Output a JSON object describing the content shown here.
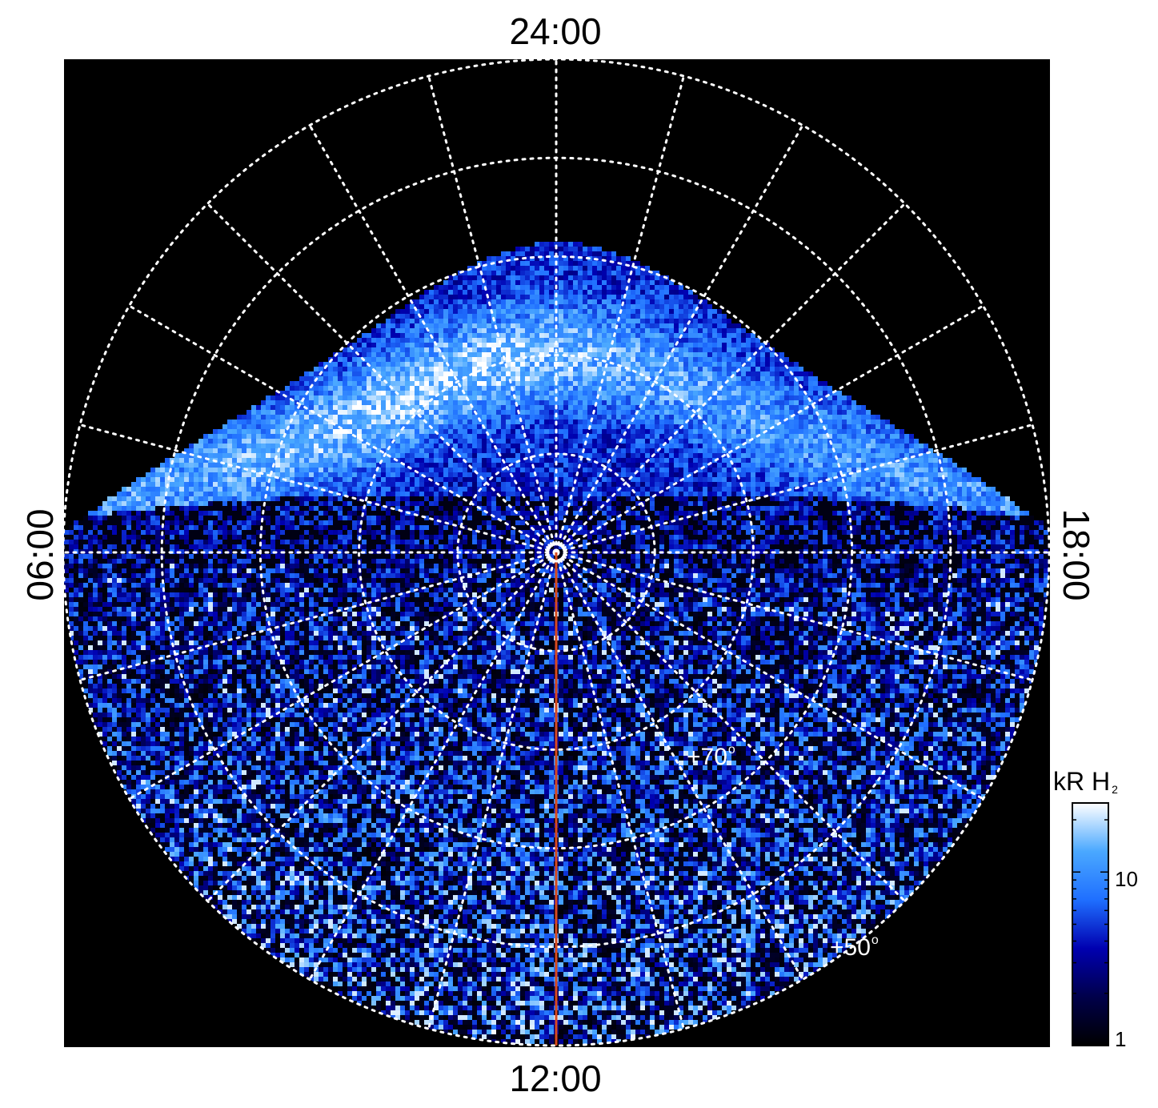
{
  "chart_data": {
    "type": "heatmap",
    "projection": "polar",
    "local_time_labels": {
      "top": "24:00",
      "left": "06:00",
      "right": "18:00",
      "bottom": "12:00"
    },
    "latitude_labels": [
      "+70",
      "+50"
    ],
    "latitude_circles_deg": [
      90,
      80,
      70,
      60,
      50,
      40
    ],
    "meridian_spacing_hours": 1,
    "grid": "dotted white",
    "colorbar": {
      "title": "kR H",
      "title_subscript": "2",
      "scale": "log",
      "ticks": [
        "10",
        "1"
      ],
      "range": [
        1,
        25
      ],
      "colors": [
        "#000000",
        "#00004a",
        "#0000b0",
        "#1f6fff",
        "#4aa8ff",
        "#ffffff"
      ]
    },
    "reference_line_color": "#d84a1e",
    "background": "#000000"
  }
}
